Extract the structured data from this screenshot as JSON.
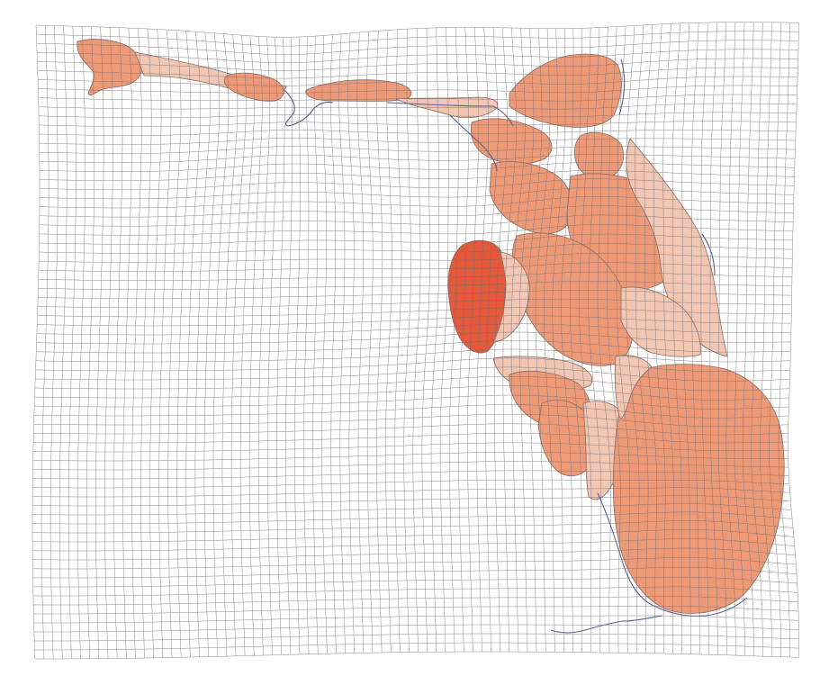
{
  "map": {
    "type": "cartogram",
    "has_title": false,
    "grid": true,
    "colors": {
      "background": "#ffffff",
      "grid_line": "#6e6e78",
      "coast_line": "#5a5f8f",
      "fill_light": "#f1c6b2",
      "fill_mid": "#ee9a77",
      "fill_strong": "#e5593a",
      "county_border": "#8a6a5e"
    },
    "regions": [
      {
        "name": "panhandle-west",
        "shade": "mid"
      },
      {
        "name": "panhandle-central",
        "shade": "light"
      },
      {
        "name": "north-east-region",
        "shade": "mid"
      },
      {
        "name": "central-region",
        "shade": "mid"
      },
      {
        "name": "east-central-region",
        "shade": "light"
      },
      {
        "name": "tampa-bay-region",
        "shade": "strong"
      },
      {
        "name": "southwest-region",
        "shade": "mid"
      },
      {
        "name": "southeast-region",
        "shade": "mid"
      },
      {
        "name": "keys",
        "shade": "coast"
      }
    ]
  }
}
